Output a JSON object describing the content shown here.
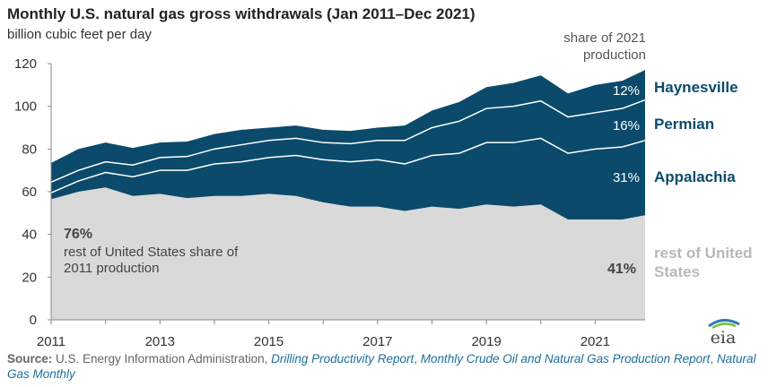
{
  "title": "Monthly U.S. natural gas gross withdrawals (Jan 2011–Dec 2021)",
  "subtitle": "billion cubic feet per day",
  "share_note": "share of 2021 production",
  "legend": {
    "haynesville": "Haynesville",
    "permian": "Permian",
    "appalachia": "Appalachia",
    "rest": "rest of United States"
  },
  "shares_2021": {
    "haynesville": "12%",
    "permian": "16%",
    "appalachia": "31%",
    "rest": "41%"
  },
  "annotation_2011": {
    "pct": "76%",
    "text": "rest of United States share of 2011 production"
  },
  "source": {
    "label": "Source:",
    "agency": "U.S. Energy Information Administration,",
    "ref1": "Drilling Productivity Report",
    "sep1": ",",
    "ref2": "Monthly Crude Oil and Natural Gas Production Report",
    "sep2": ",",
    "ref3": "Natural Gas Monthly"
  },
  "logo_text": "eia",
  "colors": {
    "rest": "#d9d9d9",
    "plays": "#0b4a6b",
    "divider": "#ffffff",
    "legend_text": "#0b4a6b",
    "rest_legend": "#b8b8b8"
  },
  "chart_data": {
    "type": "area",
    "stacked": true,
    "ylabel": "billion cubic feet per day",
    "ylim": [
      0,
      120
    ],
    "yticks": [
      0,
      20,
      40,
      60,
      80,
      100,
      120
    ],
    "xlim": [
      "2011-01",
      "2021-12"
    ],
    "xticks": [
      "2011",
      "2013",
      "2015",
      "2017",
      "2019",
      "2021"
    ],
    "x": [
      "2011-01",
      "2011-07",
      "2012-01",
      "2012-07",
      "2013-01",
      "2013-07",
      "2014-01",
      "2014-07",
      "2015-01",
      "2015-07",
      "2016-01",
      "2016-07",
      "2017-01",
      "2017-07",
      "2018-01",
      "2018-07",
      "2019-01",
      "2019-07",
      "2020-01",
      "2020-07",
      "2021-01",
      "2021-07",
      "2021-12"
    ],
    "series": [
      {
        "name": "rest of United States",
        "values": [
          56.5,
          60,
          62,
          58,
          59,
          57,
          58,
          58,
          59,
          58,
          55,
          53,
          53,
          51,
          53,
          52,
          54,
          53,
          54,
          47,
          47,
          47,
          49
        ]
      },
      {
        "name": "Appalachia",
        "values": [
          3,
          5,
          7,
          9,
          11,
          13,
          15,
          16,
          17,
          19,
          20,
          21,
          22,
          22,
          24,
          26,
          29,
          30,
          31,
          31,
          33,
          34,
          35
        ]
      },
      {
        "name": "Permian",
        "values": [
          5,
          5,
          5,
          5.5,
          6,
          6.5,
          7,
          8,
          8,
          8,
          8,
          8.5,
          9,
          11,
          13,
          15,
          16,
          17,
          17.5,
          17,
          17,
          18,
          19
        ]
      },
      {
        "name": "Haynesville",
        "values": [
          9,
          10,
          9,
          8,
          7,
          7,
          7,
          7,
          6,
          6,
          6,
          6,
          6,
          7,
          8,
          9,
          10,
          11,
          12,
          11,
          13,
          13,
          14
        ]
      }
    ]
  }
}
